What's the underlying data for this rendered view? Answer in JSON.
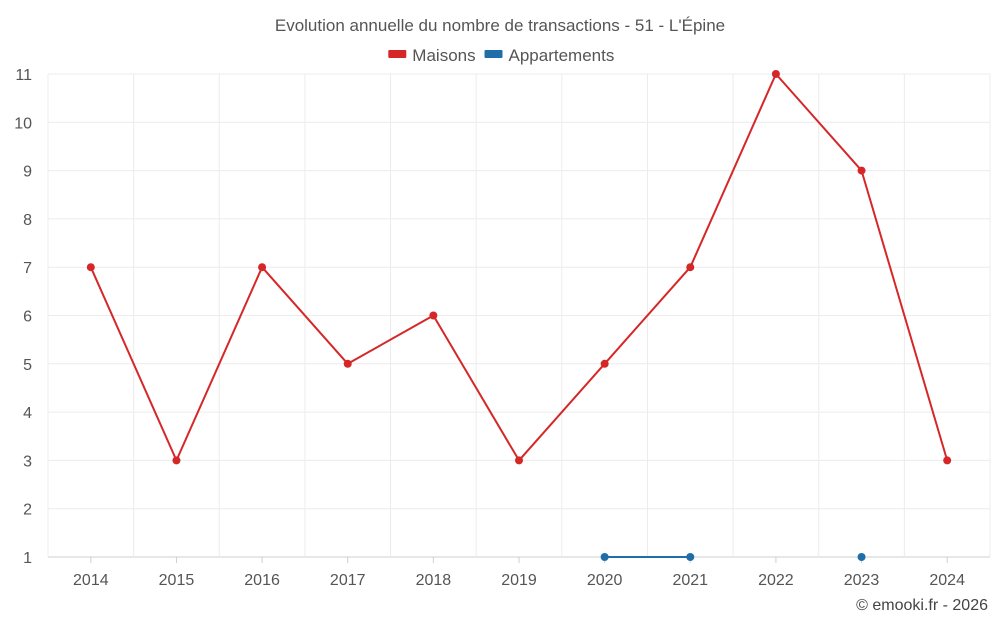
{
  "chart_data": {
    "type": "line",
    "title": "Evolution annuelle du nombre de transactions - 51 - L'Épine",
    "x": [
      "2014",
      "2015",
      "2016",
      "2017",
      "2018",
      "2019",
      "2020",
      "2021",
      "2022",
      "2023",
      "2024"
    ],
    "ylim": [
      1,
      11
    ],
    "yticks": [
      1,
      2,
      3,
      4,
      5,
      6,
      7,
      8,
      9,
      10,
      11
    ],
    "grid": true,
    "legend_position": "top-center",
    "series": [
      {
        "name": "Maisons",
        "color": "#d62728",
        "values": [
          7,
          3,
          7,
          5,
          6,
          3,
          5,
          7,
          11,
          9,
          3
        ]
      },
      {
        "name": "Appartements",
        "color": "#1f6ea8",
        "values": [
          null,
          null,
          null,
          null,
          null,
          null,
          1,
          1,
          null,
          1,
          null
        ]
      }
    ],
    "credit": "© emooki.fr - 2026"
  }
}
